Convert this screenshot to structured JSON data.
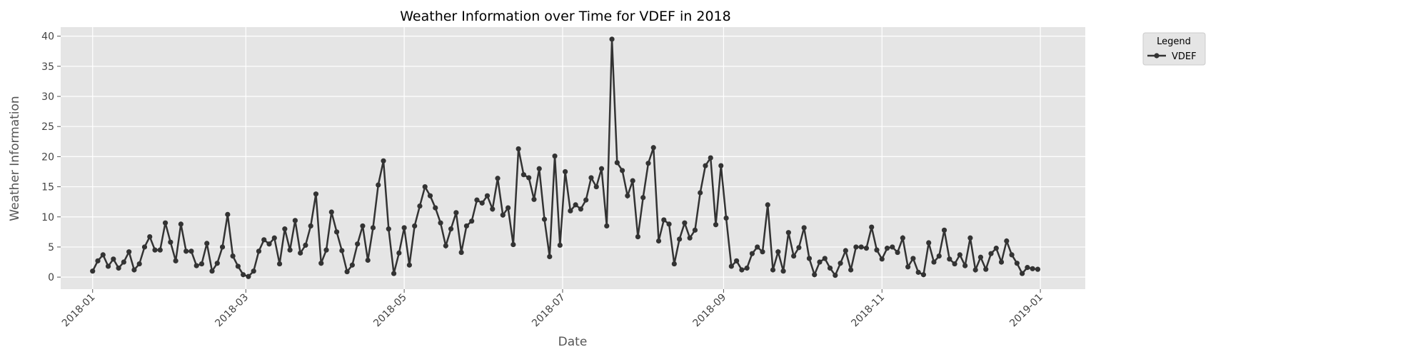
{
  "chart_data": {
    "type": "line",
    "title": "Weather Information over Time for VDEF in 2018",
    "x_label": "Date",
    "y_label": "Weather Information",
    "x": [
      0,
      2,
      4,
      6,
      8,
      10,
      12,
      14,
      16,
      18,
      20,
      22,
      24,
      26,
      28,
      30,
      32,
      34,
      36,
      38,
      40,
      42,
      44,
      46,
      48,
      50,
      52,
      54,
      56,
      58,
      60,
      62,
      64,
      66,
      68,
      70,
      72,
      74,
      76,
      78,
      80,
      82,
      84,
      86,
      88,
      90,
      92,
      94,
      96,
      98,
      100,
      102,
      104,
      106,
      108,
      110,
      112,
      114,
      116,
      118,
      120,
      122,
      124,
      126,
      128,
      130,
      132,
      134,
      136,
      138,
      140,
      142,
      144,
      146,
      148,
      150,
      152,
      154,
      156,
      158,
      160,
      162,
      164,
      166,
      168,
      170,
      172,
      174,
      176,
      178,
      180,
      182,
      184,
      186,
      188,
      190,
      192,
      194,
      196,
      198,
      200,
      202,
      204,
      206,
      208,
      210,
      212,
      214,
      216,
      218,
      220,
      222,
      224,
      226,
      228,
      230,
      232,
      234,
      236,
      238,
      240,
      242,
      244,
      246,
      248,
      250,
      252,
      254,
      256,
      258,
      260,
      262,
      264,
      266,
      268,
      270,
      272,
      274,
      276,
      278,
      280,
      282,
      284,
      286,
      288,
      290,
      292,
      294,
      296,
      298,
      300,
      302,
      304,
      306,
      308,
      310,
      312,
      314,
      316,
      318,
      320,
      322,
      324,
      326,
      328,
      330,
      332,
      334,
      336,
      338,
      340,
      342,
      344,
      346,
      348,
      350,
      352,
      354,
      356,
      358,
      360,
      362,
      364
    ],
    "series": [
      {
        "name": "VDEF",
        "color": "#333333",
        "values": [
          1,
          2.7,
          3.7,
          1.8,
          3,
          1.5,
          2.5,
          4.2,
          1.2,
          2.2,
          5,
          6.7,
          4.5,
          4.5,
          9,
          5.8,
          2.7,
          8.8,
          4.3,
          4.3,
          1.9,
          2.2,
          5.6,
          1,
          2.3,
          5,
          10.4,
          3.5,
          1.8,
          0.4,
          0.1,
          1,
          4.3,
          6.2,
          5.5,
          6.5,
          2.2,
          8,
          4.5,
          9.4,
          4,
          5.3,
          8.5,
          13.8,
          2.3,
          4.5,
          10.8,
          7.5,
          4.4,
          0.9,
          2,
          5.5,
          8.5,
          2.8,
          8.2,
          15.3,
          19.3,
          8,
          0.6,
          4,
          8.2,
          2,
          8.5,
          11.8,
          15,
          13.5,
          11.5,
          9,
          5.2,
          8,
          10.7,
          4.1,
          8.5,
          9.3,
          12.8,
          12.3,
          13.5,
          11.3,
          16.4,
          10.3,
          11.5,
          5.4,
          21.3,
          17,
          16.5,
          12.9,
          18,
          9.6,
          3.4,
          20.1,
          5.3,
          17.5,
          11,
          12,
          11.3,
          12.8,
          16.5,
          15,
          18,
          8.5,
          39.5,
          19,
          17.7,
          13.5,
          16,
          6.7,
          13.2,
          18.9,
          21.5,
          6,
          9.5,
          8.8,
          2.2,
          6.3,
          9,
          6.5,
          7.8,
          14,
          18.5,
          19.8,
          8.7,
          18.5,
          9.8,
          1.8,
          2.7,
          1.2,
          1.5,
          3.9,
          5,
          4.2,
          12,
          1.2,
          4.2,
          1,
          7.4,
          3.5,
          4.9,
          8.2,
          3.1,
          0.4,
          2.5,
          3.1,
          1.5,
          0.3,
          2.3,
          4.4,
          1.2,
          5,
          5,
          4.8,
          8.3,
          4.5,
          3,
          4.8,
          5,
          4.1,
          6.5,
          1.7,
          3.1,
          0.8,
          0.4,
          5.7,
          2.5,
          3.5,
          7.8,
          3,
          2.2,
          3.7,
          1.9,
          6.5,
          1.2,
          3.3,
          1.3,
          3.9,
          4.8,
          2.5,
          6,
          3.7,
          2.3,
          0.6,
          1.6,
          1.4,
          1.3
        ]
      }
    ],
    "xlim": [
      -12.3,
      382.3
    ],
    "xticks": [
      {
        "value": 0,
        "label": "2018-01"
      },
      {
        "value": 59,
        "label": "2018-03"
      },
      {
        "value": 120,
        "label": "2018-05"
      },
      {
        "value": 181,
        "label": "2018-07"
      },
      {
        "value": 243,
        "label": "2018-09"
      },
      {
        "value": 304,
        "label": "2018-11"
      },
      {
        "value": 365,
        "label": "2019-01"
      }
    ],
    "ylim": [
      -2,
      41.5
    ],
    "yticks": [
      0,
      5,
      10,
      15,
      20,
      25,
      30,
      35,
      40
    ],
    "grid": true,
    "legend_title": "Legend",
    "legend_position": "outside-right"
  }
}
